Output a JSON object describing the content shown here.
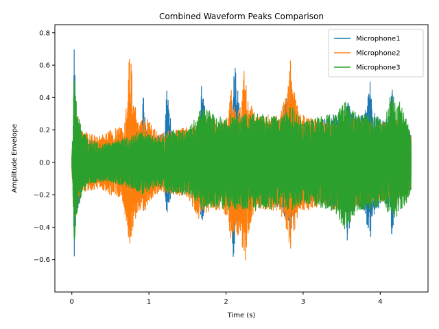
{
  "chart_data": {
    "type": "line",
    "title": "Combined Waveform Peaks Comparison",
    "xlabel": "Time (s)",
    "ylabel": "Amplitude Envelope",
    "xlim": [
      -0.22,
      4.62
    ],
    "ylim": [
      -0.8,
      0.85
    ],
    "xticks": [
      0,
      1,
      2,
      3,
      4
    ],
    "yticks": [
      -0.6,
      -0.4,
      -0.2,
      0.0,
      0.2,
      0.4,
      0.6,
      0.8
    ],
    "ytick_labels": [
      "−0.6",
      "−0.4",
      "−0.2",
      "0.0",
      "0.2",
      "0.4",
      "0.6",
      "0.8"
    ],
    "grid": false,
    "legend_position": "top-right",
    "series": [
      {
        "name": "Microphone1",
        "color": "#1f77b4",
        "envelope": {
          "x": [
            0.0,
            0.02,
            0.03,
            0.05,
            0.08,
            0.12,
            0.2,
            0.35,
            0.5,
            0.7,
            0.75,
            0.8,
            0.9,
            0.93,
            0.96,
            1.1,
            1.2,
            1.23,
            1.3,
            1.5,
            1.65,
            1.68,
            1.75,
            1.9,
            2.05,
            2.1,
            2.12,
            2.18,
            2.25,
            2.3,
            2.5,
            2.7,
            2.85,
            2.9,
            3.0,
            3.2,
            3.4,
            3.55,
            3.57,
            3.62,
            3.7,
            3.8,
            3.87,
            3.9,
            3.95,
            4.05,
            4.13,
            4.15,
            4.2,
            4.3,
            4.4
          ],
          "upper": [
            0.05,
            0.3,
            0.76,
            0.4,
            0.25,
            0.18,
            0.14,
            0.12,
            0.14,
            0.16,
            0.45,
            0.28,
            0.2,
            0.45,
            0.22,
            0.16,
            0.18,
            0.45,
            0.2,
            0.18,
            0.2,
            0.48,
            0.26,
            0.22,
            0.24,
            0.58,
            0.6,
            0.35,
            0.26,
            0.22,
            0.24,
            0.28,
            0.5,
            0.3,
            0.25,
            0.25,
            0.3,
            0.25,
            0.4,
            0.33,
            0.28,
            0.3,
            0.52,
            0.35,
            0.3,
            0.25,
            0.35,
            0.5,
            0.3,
            0.2,
            0.18
          ],
          "lower": [
            -0.05,
            -0.3,
            -0.62,
            -0.4,
            -0.28,
            -0.18,
            -0.14,
            -0.12,
            -0.14,
            -0.16,
            -0.4,
            -0.25,
            -0.2,
            -0.32,
            -0.2,
            -0.15,
            -0.18,
            -0.32,
            -0.2,
            -0.18,
            -0.2,
            -0.38,
            -0.26,
            -0.22,
            -0.24,
            -0.65,
            -0.5,
            -0.35,
            -0.26,
            -0.22,
            -0.24,
            -0.28,
            -0.45,
            -0.3,
            -0.25,
            -0.25,
            -0.3,
            -0.25,
            -0.5,
            -0.35,
            -0.28,
            -0.3,
            -0.52,
            -0.35,
            -0.3,
            -0.25,
            -0.38,
            -0.45,
            -0.3,
            -0.2,
            -0.18
          ]
        }
      },
      {
        "name": "Microphone2",
        "color": "#ff7f0e",
        "envelope": {
          "x": [
            0.0,
            0.02,
            0.04,
            0.07,
            0.1,
            0.2,
            0.35,
            0.5,
            0.65,
            0.72,
            0.75,
            0.78,
            0.85,
            0.95,
            1.05,
            1.15,
            1.3,
            1.5,
            1.65,
            1.8,
            1.95,
            2.03,
            2.06,
            2.1,
            2.2,
            2.24,
            2.28,
            2.4,
            2.55,
            2.7,
            2.8,
            2.83,
            2.86,
            2.95,
            3.1,
            3.25,
            3.4,
            3.55,
            3.7,
            3.8,
            3.95,
            4.1,
            4.2,
            4.3,
            4.4
          ],
          "upper": [
            0.05,
            0.2,
            0.4,
            0.3,
            0.22,
            0.18,
            0.16,
            0.2,
            0.22,
            0.4,
            0.73,
            0.55,
            0.25,
            0.3,
            0.22,
            0.18,
            0.2,
            0.22,
            0.25,
            0.28,
            0.25,
            0.3,
            0.48,
            0.35,
            0.35,
            0.63,
            0.4,
            0.28,
            0.3,
            0.3,
            0.45,
            0.72,
            0.5,
            0.3,
            0.28,
            0.25,
            0.25,
            0.25,
            0.28,
            0.25,
            0.25,
            0.25,
            0.28,
            0.2,
            0.18
          ],
          "lower": [
            -0.05,
            -0.2,
            -0.35,
            -0.3,
            -0.22,
            -0.18,
            -0.16,
            -0.2,
            -0.22,
            -0.4,
            -0.57,
            -0.45,
            -0.3,
            -0.3,
            -0.22,
            -0.18,
            -0.2,
            -0.22,
            -0.35,
            -0.3,
            -0.3,
            -0.35,
            -0.49,
            -0.45,
            -0.45,
            -0.72,
            -0.45,
            -0.28,
            -0.3,
            -0.3,
            -0.45,
            -0.58,
            -0.5,
            -0.3,
            -0.3,
            -0.25,
            -0.3,
            -0.25,
            -0.28,
            -0.25,
            -0.25,
            -0.25,
            -0.28,
            -0.2,
            -0.18
          ]
        }
      },
      {
        "name": "Microphone3",
        "color": "#2ca02c",
        "envelope": {
          "x": [
            0.0,
            0.02,
            0.03,
            0.05,
            0.08,
            0.12,
            0.2,
            0.35,
            0.5,
            0.7,
            0.9,
            1.1,
            1.3,
            1.5,
            1.7,
            1.9,
            2.1,
            2.3,
            2.5,
            2.7,
            2.85,
            3.0,
            3.2,
            3.4,
            3.55,
            3.7,
            3.9,
            4.05,
            4.15,
            4.2,
            4.25,
            4.35,
            4.4
          ],
          "upper": [
            0.05,
            0.3,
            0.6,
            0.45,
            0.3,
            0.22,
            0.15,
            0.12,
            0.12,
            0.15,
            0.2,
            0.15,
            0.2,
            0.2,
            0.35,
            0.28,
            0.3,
            0.3,
            0.3,
            0.28,
            0.35,
            0.25,
            0.28,
            0.3,
            0.38,
            0.3,
            0.3,
            0.25,
            0.45,
            0.35,
            0.38,
            0.25,
            0.18
          ],
          "lower": [
            -0.05,
            -0.3,
            -0.55,
            -0.42,
            -0.3,
            -0.22,
            -0.15,
            -0.12,
            -0.12,
            -0.15,
            -0.2,
            -0.15,
            -0.2,
            -0.2,
            -0.3,
            -0.28,
            -0.3,
            -0.3,
            -0.3,
            -0.28,
            -0.3,
            -0.25,
            -0.28,
            -0.3,
            -0.42,
            -0.3,
            -0.3,
            -0.25,
            -0.38,
            -0.35,
            -0.32,
            -0.25,
            -0.18
          ]
        }
      }
    ]
  }
}
